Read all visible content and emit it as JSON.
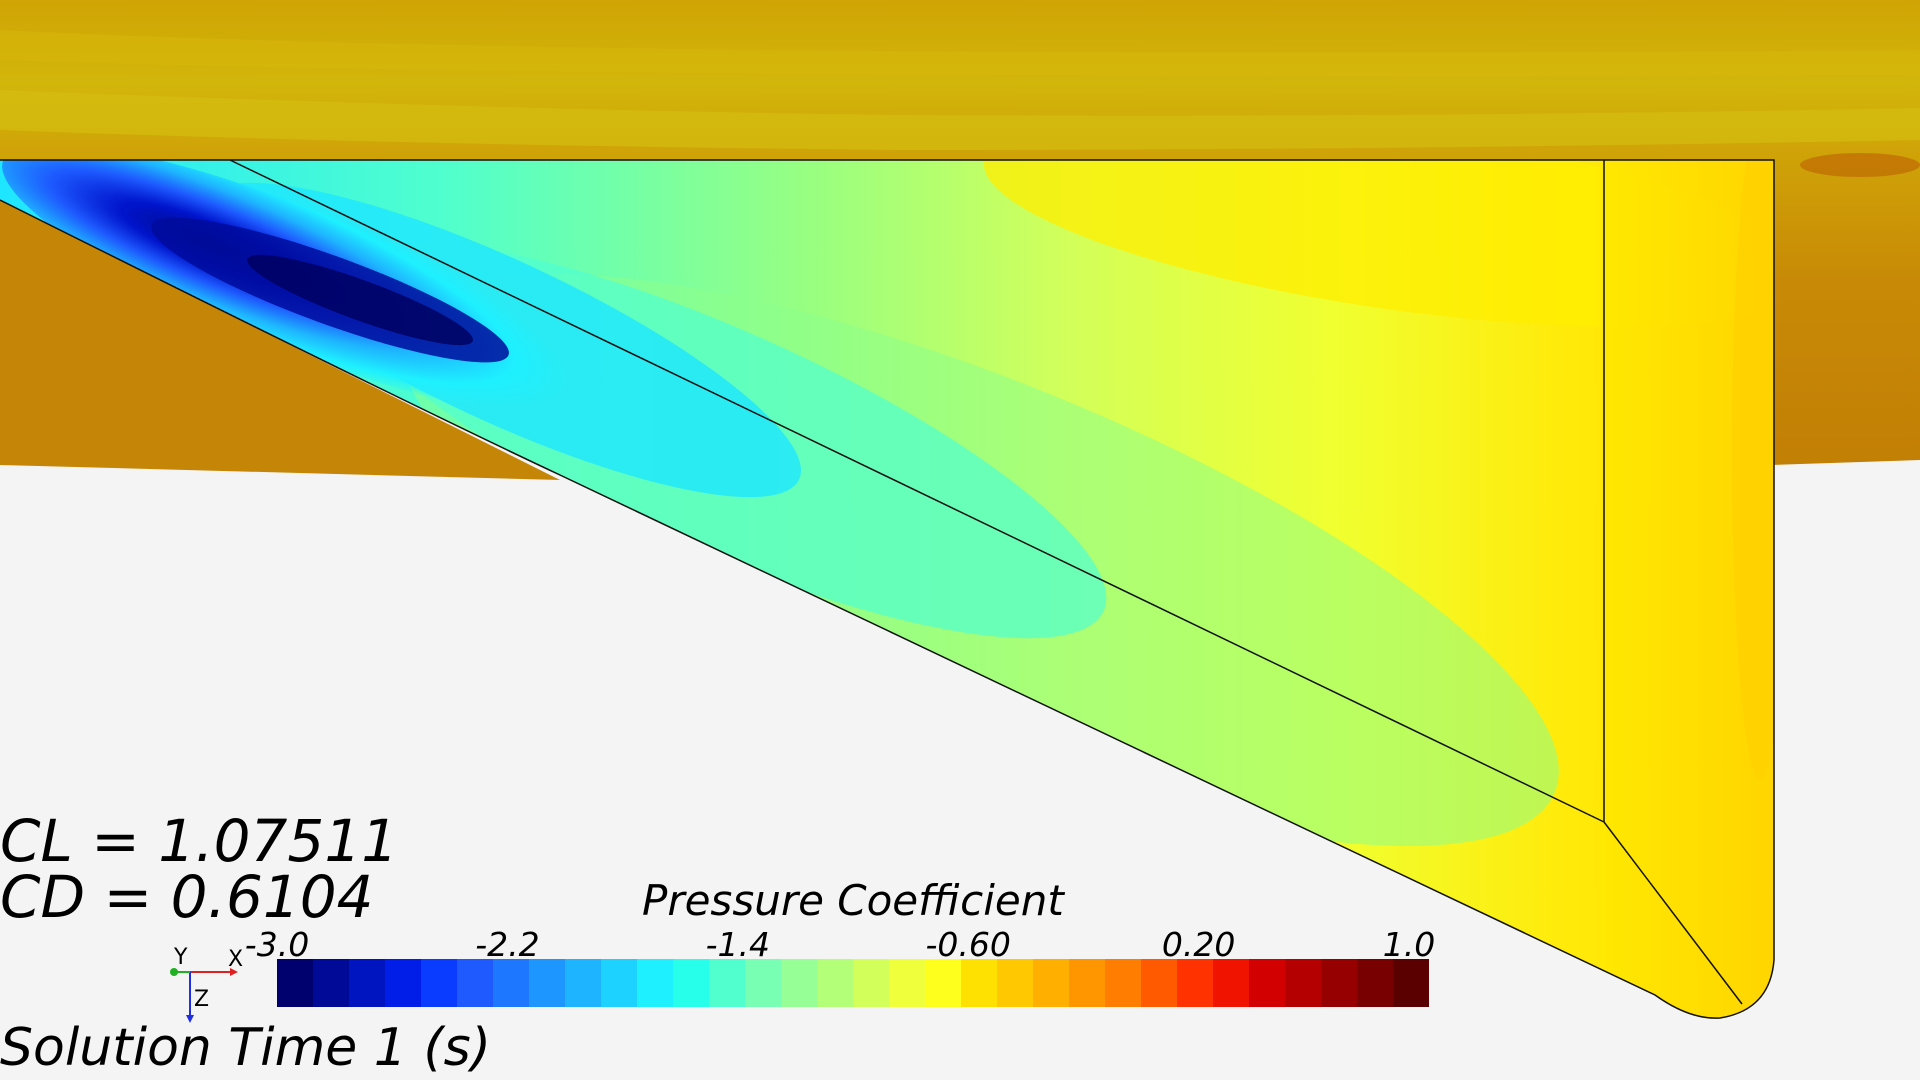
{
  "readouts": {
    "cl": "CL = 1.07511",
    "cd": "CD = 0.6104",
    "solution_time": "Solution Time 1 (s)"
  },
  "legend": {
    "title": "Pressure Coefficient",
    "ticks": [
      "-3.0",
      "-2.2",
      "-1.4",
      "-0.60",
      "0.20",
      "1.0"
    ],
    "range": [
      -3.0,
      1.0
    ],
    "colors": [
      "#00006e",
      "#000a96",
      "#0014bf",
      "#001ee8",
      "#0a3cff",
      "#1e5aff",
      "#1e78ff",
      "#1e96ff",
      "#1eb4ff",
      "#1ed2ff",
      "#1ef0ff",
      "#28ffeb",
      "#50ffcd",
      "#78ffb4",
      "#96ff96",
      "#b4ff78",
      "#d2ff5a",
      "#f0ff3c",
      "#ffff1e",
      "#ffe100",
      "#ffc800",
      "#ffaf00",
      "#ff9600",
      "#ff7d00",
      "#ff5a00",
      "#ff3200",
      "#f01400",
      "#d20000",
      "#b40000",
      "#960000",
      "#780000",
      "#5a0000"
    ]
  },
  "triad": {
    "x_label": "X",
    "y_label": "Y",
    "z_label": "Z",
    "x_color": "#e02020",
    "y_color": "#20b020",
    "z_color": "#2030e0"
  },
  "scene": {
    "background_color": "#f2f2f2",
    "body_color": "#c8890a",
    "wing_base_color": "#fff000"
  }
}
